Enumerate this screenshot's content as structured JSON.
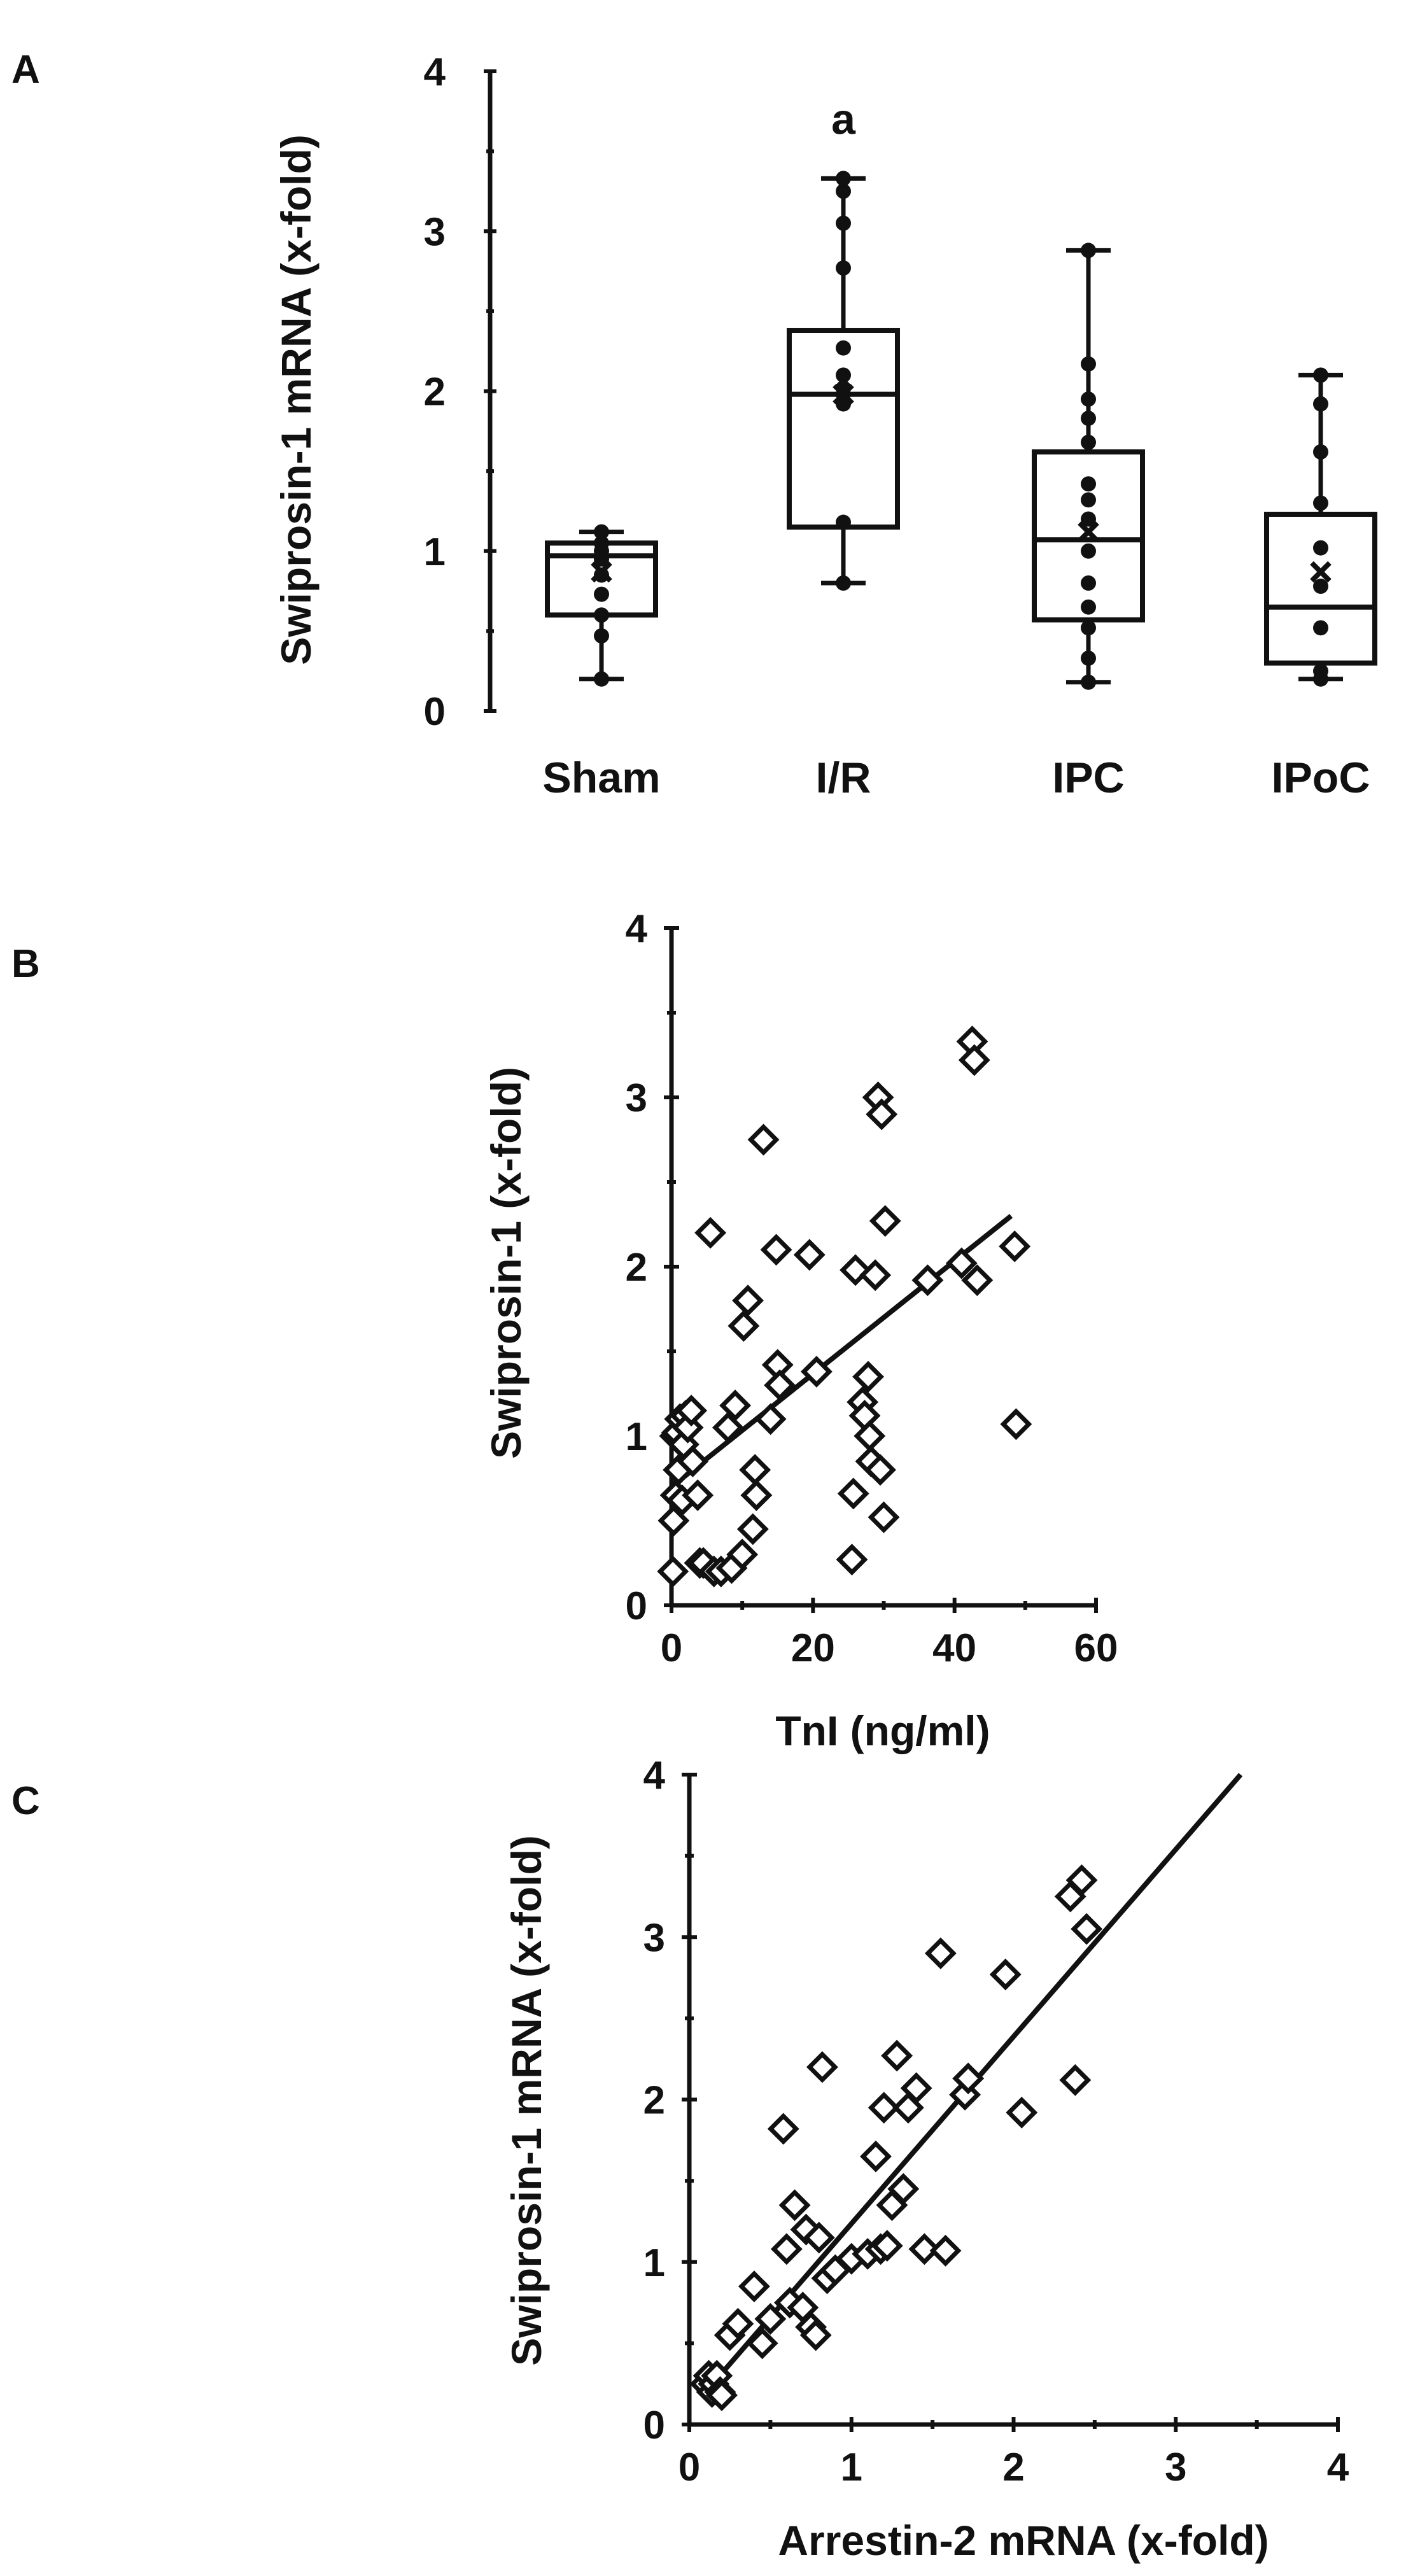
{
  "panels": {
    "a": "A",
    "b": "B",
    "c": "C"
  },
  "colors": {
    "ink": "#111111",
    "background": "#ffffff"
  },
  "chart_data": [
    {
      "id": "A",
      "type": "box",
      "title": "",
      "xlabel": "",
      "ylabel": "Swiprosin-1 mRNA (x-fold)",
      "ylim": [
        0,
        4
      ],
      "yticks": [
        "0",
        "1",
        "2",
        "3",
        "4"
      ],
      "categories": [
        "Sham",
        "I/R",
        "IPC",
        "IPoC"
      ],
      "annotations": [
        {
          "category": "I/R",
          "text": "a"
        }
      ],
      "boxes": [
        {
          "name": "Sham",
          "min": 0.2,
          "q1": 0.6,
          "median": 0.97,
          "q3": 1.05,
          "max": 1.12,
          "mean": 0.87,
          "points": [
            0.2,
            0.47,
            0.6,
            0.73,
            0.85,
            0.95,
            1.0,
            1.05,
            1.12
          ]
        },
        {
          "name": "I/R",
          "min": 0.8,
          "q1": 1.15,
          "median": 1.98,
          "q3": 2.38,
          "max": 3.33,
          "mean": 1.98,
          "points": [
            0.8,
            1.18,
            1.92,
            1.98,
            2.02,
            2.1,
            2.27,
            2.77,
            3.05,
            3.25,
            3.33
          ]
        },
        {
          "name": "IPC",
          "min": 0.18,
          "q1": 0.57,
          "median": 1.07,
          "q3": 1.62,
          "max": 2.88,
          "mean": 1.12,
          "points": [
            0.18,
            0.33,
            0.52,
            0.65,
            0.8,
            1.0,
            1.2,
            1.32,
            1.42,
            1.68,
            1.83,
            1.95,
            2.17,
            2.88
          ]
        },
        {
          "name": "IPoC",
          "min": 0.2,
          "q1": 0.3,
          "median": 0.65,
          "q3": 1.23,
          "max": 2.1,
          "mean": 0.87,
          "points": [
            0.2,
            0.25,
            0.52,
            0.78,
            1.02,
            1.3,
            1.62,
            1.92,
            2.1
          ]
        }
      ]
    },
    {
      "id": "B",
      "type": "scatter",
      "title": "",
      "xlabel": "TnI (ng/ml)",
      "ylabel": "Swiprosin-1 (x-fold)",
      "xlim": [
        0,
        60
      ],
      "ylim": [
        0,
        4
      ],
      "xticks": [
        "0",
        "20",
        "40",
        "60"
      ],
      "yticks": [
        "0",
        "1",
        "2",
        "3",
        "4"
      ],
      "trendline": {
        "x0": 0,
        "y0": 0.7,
        "x1": 48,
        "y1": 2.3
      },
      "points": [
        [
          0.2,
          0.2
        ],
        [
          0.3,
          0.5
        ],
        [
          0.5,
          1.0
        ],
        [
          0.6,
          0.65
        ],
        [
          0.8,
          1.02
        ],
        [
          1.0,
          0.8
        ],
        [
          1.2,
          1.1
        ],
        [
          1.5,
          0.62
        ],
        [
          1.7,
          0.95
        ],
        [
          2.0,
          1.12
        ],
        [
          2.3,
          1.05
        ],
        [
          2.8,
          1.15
        ],
        [
          3.0,
          0.85
        ],
        [
          3.7,
          0.65
        ],
        [
          4.0,
          0.25
        ],
        [
          4.5,
          0.25
        ],
        [
          5.5,
          2.2
        ],
        [
          6.0,
          0.2
        ],
        [
          7.0,
          0.2
        ],
        [
          8.0,
          1.05
        ],
        [
          8.5,
          0.22
        ],
        [
          9.0,
          1.18
        ],
        [
          10.0,
          0.3
        ],
        [
          10.2,
          1.65
        ],
        [
          10.8,
          1.8
        ],
        [
          11.5,
          0.45
        ],
        [
          11.8,
          0.8
        ],
        [
          12.0,
          0.65
        ],
        [
          13.0,
          2.75
        ],
        [
          14.0,
          1.1
        ],
        [
          14.8,
          2.1
        ],
        [
          15.0,
          1.42
        ],
        [
          15.3,
          1.3
        ],
        [
          19.5,
          2.07
        ],
        [
          20.5,
          1.38
        ],
        [
          25.5,
          0.27
        ],
        [
          25.7,
          0.66
        ],
        [
          26.0,
          1.98
        ],
        [
          27.0,
          1.2
        ],
        [
          27.3,
          1.12
        ],
        [
          27.8,
          1.35
        ],
        [
          28.0,
          1.0
        ],
        [
          28.2,
          0.85
        ],
        [
          28.8,
          1.95
        ],
        [
          29.2,
          3.0
        ],
        [
          29.5,
          0.8
        ],
        [
          29.7,
          2.9
        ],
        [
          30.0,
          0.52
        ],
        [
          30.2,
          2.27
        ],
        [
          36.2,
          1.92
        ],
        [
          41.0,
          2.02
        ],
        [
          42.5,
          3.33
        ],
        [
          42.8,
          3.22
        ],
        [
          43.2,
          1.92
        ],
        [
          48.5,
          2.12
        ],
        [
          48.7,
          1.07
        ]
      ]
    },
    {
      "id": "C",
      "type": "scatter",
      "title": "",
      "xlabel": "Arrestin-2 mRNA (x-fold)",
      "ylabel": "Swiprosin-1 mRNA (x-fold)",
      "xlim": [
        0,
        4
      ],
      "ylim": [
        0,
        4
      ],
      "xticks": [
        "0",
        "1",
        "2",
        "3",
        "4"
      ],
      "yticks": [
        "0",
        "1",
        "2",
        "3",
        "4"
      ],
      "trendline": {
        "x0": 0.1,
        "y0": 0.2,
        "x1": 3.4,
        "y1": 4.0
      },
      "points": [
        [
          0.1,
          0.25
        ],
        [
          0.12,
          0.3
        ],
        [
          0.14,
          0.2
        ],
        [
          0.15,
          0.25
        ],
        [
          0.17,
          0.3
        ],
        [
          0.19,
          0.2
        ],
        [
          0.2,
          0.18
        ],
        [
          0.25,
          0.55
        ],
        [
          0.3,
          0.62
        ],
        [
          0.4,
          0.85
        ],
        [
          0.45,
          0.5
        ],
        [
          0.5,
          0.65
        ],
        [
          0.58,
          1.82
        ],
        [
          0.6,
          1.08
        ],
        [
          0.62,
          0.75
        ],
        [
          0.65,
          1.35
        ],
        [
          0.7,
          0.72
        ],
        [
          0.72,
          1.2
        ],
        [
          0.75,
          0.6
        ],
        [
          0.78,
          0.55
        ],
        [
          0.8,
          1.15
        ],
        [
          0.82,
          2.2
        ],
        [
          0.85,
          0.9
        ],
        [
          0.9,
          0.95
        ],
        [
          1.0,
          1.02
        ],
        [
          1.1,
          1.05
        ],
        [
          1.15,
          1.65
        ],
        [
          1.18,
          1.08
        ],
        [
          1.2,
          1.95
        ],
        [
          1.22,
          1.1
        ],
        [
          1.25,
          1.35
        ],
        [
          1.28,
          2.27
        ],
        [
          1.32,
          1.45
        ],
        [
          1.35,
          1.95
        ],
        [
          1.4,
          2.07
        ],
        [
          1.45,
          1.08
        ],
        [
          1.55,
          2.9
        ],
        [
          1.58,
          1.07
        ],
        [
          1.7,
          2.03
        ],
        [
          1.72,
          2.13
        ],
        [
          1.95,
          2.77
        ],
        [
          2.05,
          1.92
        ],
        [
          2.35,
          3.25
        ],
        [
          2.38,
          2.12
        ],
        [
          2.42,
          3.35
        ],
        [
          2.45,
          3.05
        ]
      ]
    }
  ]
}
